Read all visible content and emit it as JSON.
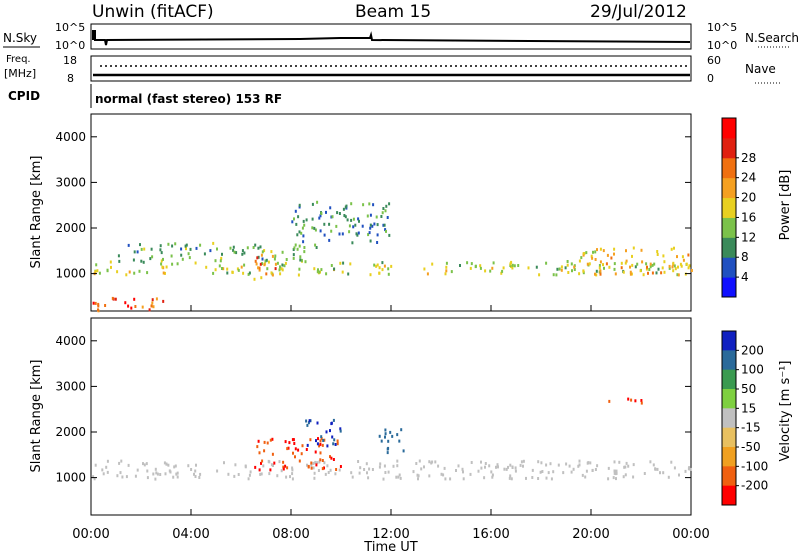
{
  "header": {
    "site": "Unwin (fitACF)",
    "beam": "Beam 15",
    "date": "29/Jul/2012"
  },
  "params": {
    "nsky_label": "N.Sky",
    "nsky_top": "10^5",
    "nsky_bottom": "10^0",
    "nsearch_label": "N.Search",
    "nsearch_top": "10^5",
    "nsearch_bottom": "10^0",
    "freq_label": "Freq.",
    "freq_unit": "[MHz]",
    "freq_top": "18",
    "freq_bottom": "8",
    "nave_label": "Nave",
    "nave_top": "60",
    "nave_bottom": "0",
    "cpid_label": "CPID",
    "cpid_value": "normal (fast stereo) 153 RF"
  },
  "chart_data": [
    {
      "type": "heatmap",
      "panel": "power",
      "ylabel": "Slant Range [km]",
      "y_ticks": [
        1000,
        2000,
        3000,
        4000
      ],
      "ylim": [
        180,
        4500
      ],
      "colorbar_label": "Power [dB]",
      "colorbar_ticks": [
        4,
        8,
        12,
        16,
        20,
        24,
        28
      ],
      "colorbar_colors": [
        "#1010ff",
        "#2050c0",
        "#3a8a5a",
        "#7bc24a",
        "#e8d020",
        "#f5a020",
        "#f07010",
        "#e02010",
        "#ff0000"
      ],
      "regions": [
        {
          "x": [
            0,
            24
          ],
          "y": [
            1000,
            1300
          ],
          "value": 16
        },
        {
          "x": [
            1,
            9
          ],
          "y": [
            1300,
            1700
          ],
          "value": 12
        },
        {
          "x": [
            6.5,
            7.5
          ],
          "y": [
            900,
            1500
          ],
          "value": 24
        },
        {
          "x": [
            8,
            12
          ],
          "y": [
            1700,
            2600
          ],
          "value": 10
        },
        {
          "x": [
            0,
            3
          ],
          "y": [
            200,
            500
          ],
          "value": 28
        },
        {
          "x": [
            19.5,
            24
          ],
          "y": [
            1000,
            1600
          ],
          "value": 20
        }
      ]
    },
    {
      "type": "heatmap",
      "panel": "velocity",
      "ylabel": "Slant Range [km]",
      "xlabel": "Time UT",
      "x_ticks": [
        "00:00",
        "04:00",
        "08:00",
        "12:00",
        "16:00",
        "20:00",
        "00:00"
      ],
      "y_ticks": [
        1000,
        2000,
        3000,
        4000
      ],
      "ylim": [
        180,
        4500
      ],
      "colorbar_label": "Velocity [m s⁻¹]",
      "colorbar_ticks": [
        200,
        100,
        50,
        15,
        -15,
        -50,
        -100,
        -200
      ],
      "colorbar_colors": [
        "#1020c0",
        "#2a6a9a",
        "#3a9a50",
        "#7ed040",
        "#c0c0c0",
        "#e8c060",
        "#f0a020",
        "#f06010",
        "#ff0000"
      ],
      "regions": [
        {
          "x": [
            0,
            24
          ],
          "y": [
            1000,
            1400
          ],
          "value": 0
        },
        {
          "x": [
            6.5,
            10
          ],
          "y": [
            1200,
            1900
          ],
          "value": -200
        },
        {
          "x": [
            8.5,
            10
          ],
          "y": [
            1700,
            2300
          ],
          "value": 200
        },
        {
          "x": [
            11.5,
            12.5
          ],
          "y": [
            1500,
            2100
          ],
          "value": 150
        },
        {
          "x": [
            20.5,
            22
          ],
          "y": [
            2650,
            2800
          ],
          "value": -200
        }
      ]
    }
  ]
}
